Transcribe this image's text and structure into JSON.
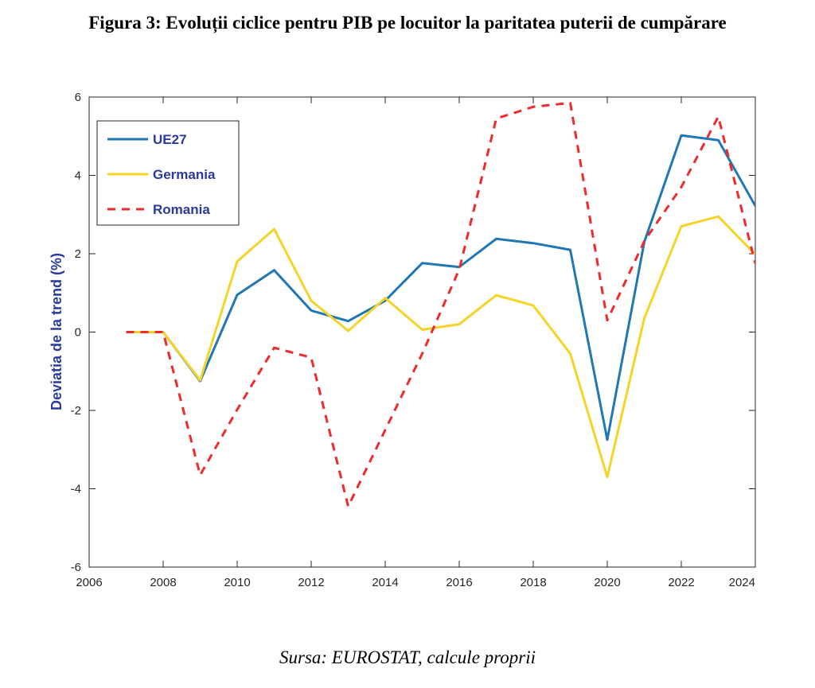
{
  "title": "Figura 3: Evoluții ciclice pentru PIB pe locuitor la paritatea puterii de cumpărare",
  "source": "Sursa: EUROSTAT, calcule proprii",
  "chart_data": {
    "type": "line",
    "title": "",
    "xlabel": "",
    "ylabel": "Deviatia de la trend (%)",
    "xlim": [
      2006,
      2024
    ],
    "ylim": [
      -6,
      6
    ],
    "xticks": [
      "2006",
      "2008",
      "2010",
      "2012",
      "2014",
      "2016",
      "2018",
      "2020",
      "2022",
      "2024"
    ],
    "yticks": [
      "-6",
      "-4",
      "-2",
      "0",
      "2",
      "4",
      "6"
    ],
    "grid": false,
    "legend_position": "top-left",
    "x": [
      2007,
      2008,
      2009,
      2010,
      2011,
      2012,
      2013,
      2014,
      2015,
      2016,
      2017,
      2018,
      2019,
      2020,
      2021,
      2022,
      2023,
      2024
    ],
    "series": [
      {
        "name": "UE27",
        "color": "#1f77b4",
        "style": "solid",
        "values": [
          0,
          0,
          -1.25,
          0.95,
          1.58,
          0.55,
          0.28,
          0.8,
          1.76,
          1.66,
          2.38,
          2.27,
          2.1,
          -2.75,
          2.3,
          5.02,
          4.9,
          3.22
        ]
      },
      {
        "name": "Germania",
        "color": "#f5d327",
        "style": "solid",
        "values": [
          0,
          0,
          -1.23,
          1.8,
          2.63,
          0.8,
          0.03,
          0.87,
          0.06,
          0.2,
          0.94,
          0.68,
          -0.55,
          -3.7,
          0.35,
          2.7,
          2.95,
          1.98
        ]
      },
      {
        "name": "Romania",
        "color": "#ee2a2a",
        "style": "dashed",
        "values": [
          0,
          0,
          -3.65,
          -1.98,
          -0.4,
          -0.65,
          -4.45,
          -2.5,
          -0.55,
          1.6,
          5.45,
          5.75,
          5.85,
          0.3,
          2.32,
          3.7,
          5.5,
          1.75
        ]
      }
    ]
  }
}
